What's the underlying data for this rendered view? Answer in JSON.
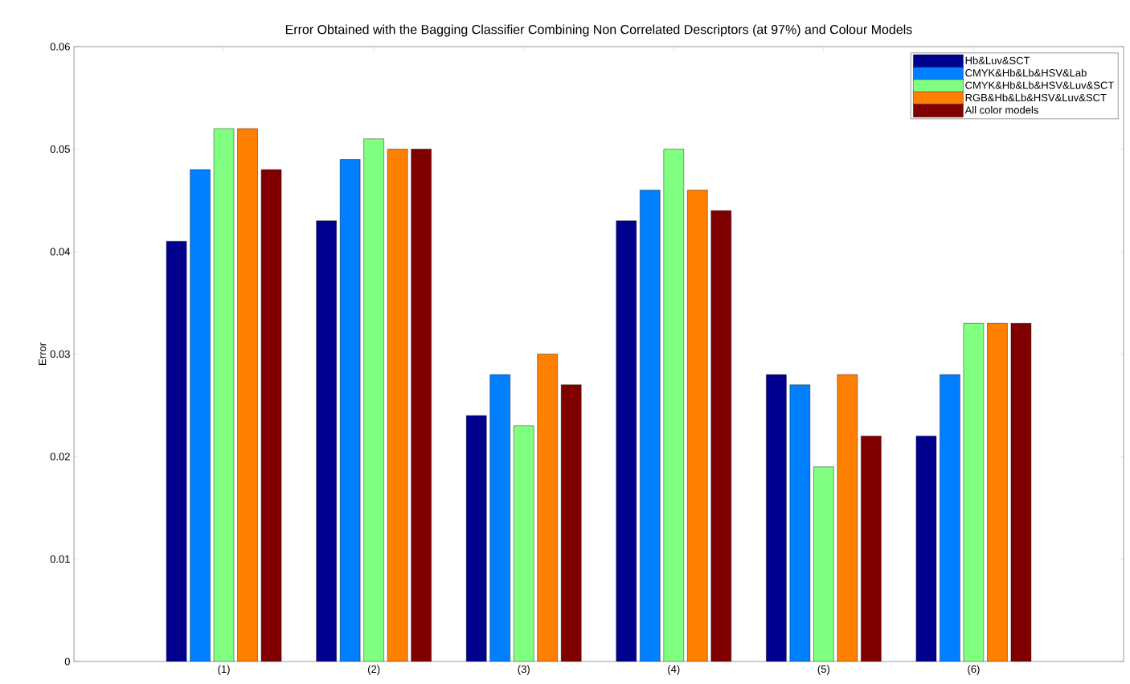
{
  "chart_data": {
    "type": "bar",
    "title": "Error Obtained with the Bagging Classifier Combining Non Correlated Descriptors (at 97%) and Colour Models",
    "ylabel": "Error",
    "categories": [
      "(1)",
      "(2)",
      "(3)",
      "(4)",
      "(5)",
      "(6)"
    ],
    "series": [
      {
        "name": "Hb&Luv&SCT",
        "color": "#00008f",
        "values": [
          0.041,
          0.043,
          0.024,
          0.043,
          0.028,
          0.022
        ]
      },
      {
        "name": "CMYK&Hb&Lb&HSV&Lab",
        "color": "#0080ff",
        "values": [
          0.048,
          0.049,
          0.028,
          0.046,
          0.027,
          0.028
        ]
      },
      {
        "name": "CMYK&Hb&Lb&HSV&Luv&SCT",
        "color": "#80ff80",
        "values": [
          0.052,
          0.051,
          0.023,
          0.05,
          0.019,
          0.033
        ]
      },
      {
        "name": "RGB&Hb&Lb&HSV&Luv&SCT",
        "color": "#ff8000",
        "values": [
          0.052,
          0.05,
          0.03,
          0.046,
          0.028,
          0.033
        ]
      },
      {
        "name": "All color models",
        "color": "#800000",
        "values": [
          0.048,
          0.05,
          0.027,
          0.044,
          0.022,
          0.033
        ]
      }
    ],
    "ylim": [
      0,
      0.06
    ],
    "yticks": [
      0,
      0.01,
      0.02,
      0.03,
      0.04,
      0.05,
      0.06
    ],
    "grid": false,
    "legend": "top right"
  }
}
